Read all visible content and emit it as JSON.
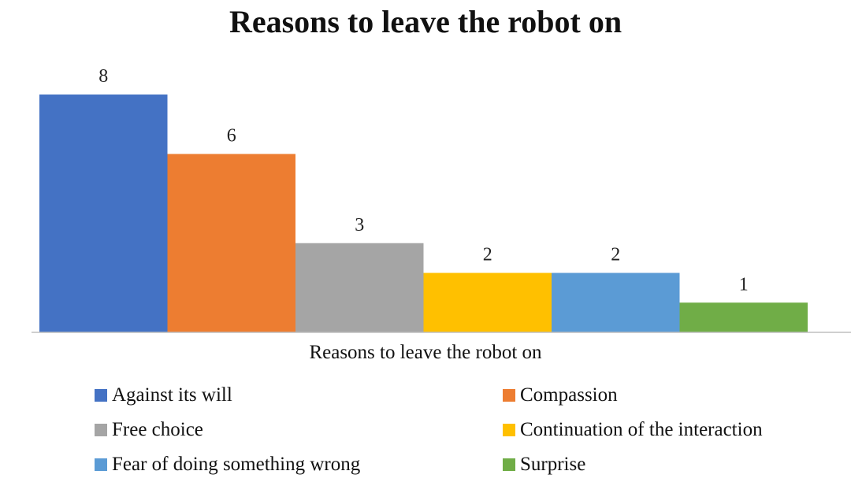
{
  "chart_data": {
    "type": "bar",
    "title": "Reasons to leave the robot on",
    "xlabel": "Reasons to leave the robot on",
    "ylabel": "",
    "ylim": [
      0,
      8
    ],
    "grid": false,
    "legend_position": "bottom",
    "categories": [
      "Against its will",
      "Compassion",
      "Free choice",
      "Continuation of the interaction",
      "Fear of doing something wrong",
      "Surprise"
    ],
    "values": [
      8,
      6,
      3,
      2,
      2,
      1
    ],
    "colors": [
      "#4472C4",
      "#ED7D31",
      "#A5A5A5",
      "#FFC000",
      "#5B9BD5",
      "#70AD47"
    ]
  }
}
